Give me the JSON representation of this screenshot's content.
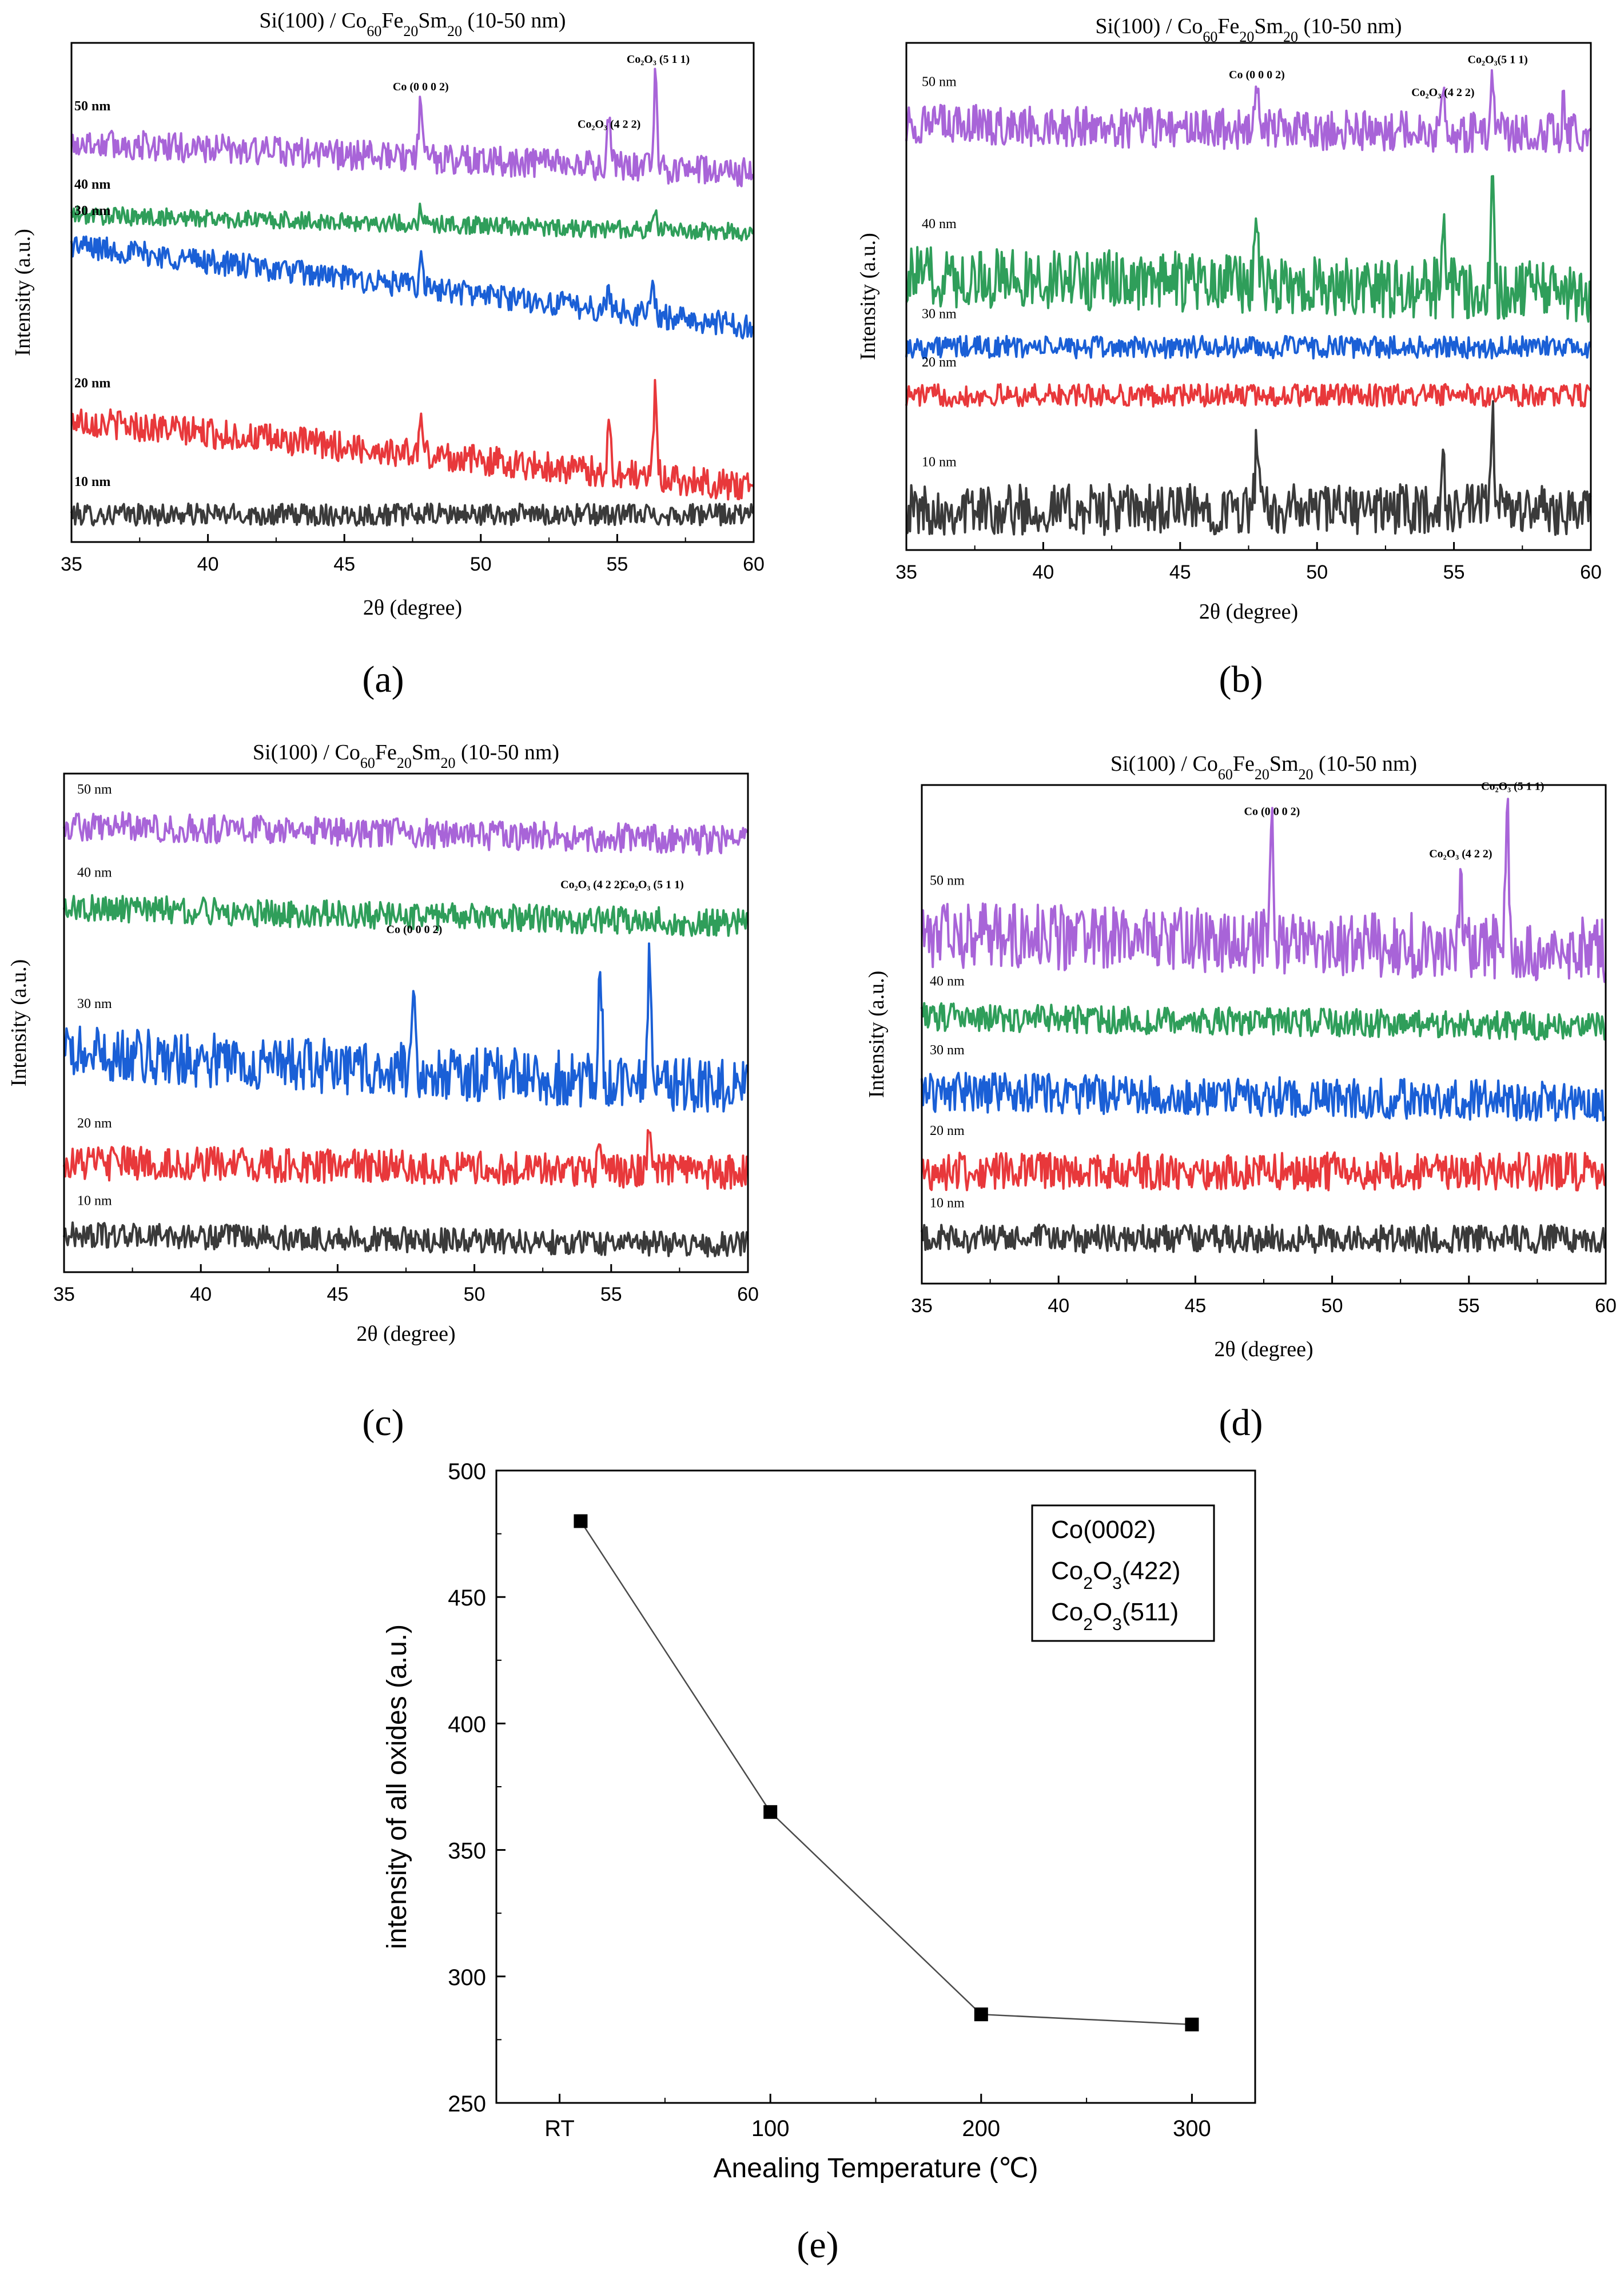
{
  "figure": {
    "panel_labels": [
      "(a)",
      "(b)",
      "(c)",
      "(d)",
      "(e)"
    ]
  },
  "colors": {
    "10 nm": "#3a3a3a",
    "20 nm": "#e8383b",
    "30 nm": "#1a5fd6",
    "40 nm": "#2f9e5a",
    "50 nm": "#a864d8",
    "axis": "#000000"
  },
  "chart_data": [
    {
      "type": "line",
      "panel": "(a)",
      "title": {
        "pre": "Si(100) / Co",
        "s1": "60",
        "mid1": "Fe",
        "s2": "20",
        "mid2": "Sm",
        "s3": "20",
        "post": " (10-50 nm)"
      },
      "xlabel": "2θ (degree)",
      "ylabel": "Intensity (a.u.)",
      "xlim": [
        35,
        60
      ],
      "xticks": [
        35,
        40,
        45,
        50,
        55,
        60
      ],
      "ylim": [
        0,
        10
      ],
      "label_style": "bold",
      "series": [
        {
          "name": "10 nm",
          "base": 0.55,
          "slope": 0.0,
          "noise": 0.22,
          "peaks": []
        },
        {
          "name": "20 nm",
          "base": 2.45,
          "slope": -1.35,
          "noise": 0.3,
          "peaks": [
            [
              47.8,
              0.7
            ],
            [
              54.7,
              0.85
            ],
            [
              56.4,
              1.85
            ]
          ]
        },
        {
          "name": "30 nm",
          "base": 5.95,
          "slope": -1.65,
          "noise": 0.25,
          "peaks": [
            [
              47.8,
              0.5
            ],
            [
              54.7,
              0.4
            ],
            [
              56.3,
              0.75
            ]
          ]
        },
        {
          "name": "40 nm",
          "base": 6.55,
          "slope": -0.35,
          "noise": 0.18,
          "peaks": [
            [
              47.8,
              0.35
            ],
            [
              56.4,
              0.3
            ]
          ]
        },
        {
          "name": "50 nm",
          "base": 8.0,
          "slope": -0.6,
          "noise": 0.3,
          "peaks": [
            [
              47.8,
              1.1
            ],
            [
              54.7,
              1.0
            ],
            [
              56.4,
              1.75
            ]
          ]
        }
      ],
      "annotations": [
        {
          "x": 47.8,
          "y": 9.05,
          "text": "Co (0 0 0 2)"
        },
        {
          "x": 54.7,
          "y": 8.3,
          "text": "Co₂O₃ (4 2 2)"
        },
        {
          "x": 56.5,
          "y": 9.6,
          "text": "Co₂O₃ (5 1 1)"
        }
      ]
    },
    {
      "type": "line",
      "panel": "(b)",
      "title": {
        "pre": "Si(100) / Co",
        "s1": "60",
        "mid1": "Fe",
        "s2": "20",
        "mid2": "Sm",
        "s3": "20",
        "post": " (10-50 nm)"
      },
      "xlabel": "2θ (degree)",
      "ylabel": "Intensity (a.u.)",
      "xlim": [
        35,
        60
      ],
      "xticks": [
        35,
        40,
        45,
        50,
        55,
        60
      ],
      "ylim": [
        0,
        10
      ],
      "label_style": "normal",
      "series": [
        {
          "name": "10 nm",
          "base": 0.8,
          "slope": 0.0,
          "noise": 0.5,
          "peaks": [
            [
              47.8,
              1.3
            ],
            [
              54.6,
              0.8
            ],
            [
              56.4,
              1.9
            ]
          ]
        },
        {
          "name": "20 nm",
          "base": 3.05,
          "slope": 0.0,
          "noise": 0.22,
          "peaks": []
        },
        {
          "name": "30 nm",
          "base": 4.0,
          "slope": 0.0,
          "noise": 0.22,
          "peaks": []
        },
        {
          "name": "40 nm",
          "base": 5.4,
          "slope": -0.3,
          "noise": 0.6,
          "peaks": [
            [
              47.8,
              1.6
            ],
            [
              54.6,
              1.1
            ],
            [
              56.4,
              2.4
            ]
          ]
        },
        {
          "name": "50 nm",
          "base": 8.4,
          "slope": -0.2,
          "noise": 0.4,
          "peaks": [
            [
              47.8,
              0.9
            ],
            [
              54.6,
              0.6
            ],
            [
              56.4,
              1.0
            ],
            [
              59.0,
              0.5
            ]
          ]
        }
      ],
      "annotations": [
        {
          "x": 47.8,
          "y": 9.3,
          "text": "Co (0 0 0 2)"
        },
        {
          "x": 54.6,
          "y": 8.95,
          "text": "Co₂O₃ (4 2 2)"
        },
        {
          "x": 56.6,
          "y": 9.6,
          "text": "Co₂O₃(5 1 1)"
        }
      ]
    },
    {
      "type": "line",
      "panel": "(c)",
      "title": {
        "pre": "Si(100) / Co",
        "s1": "60",
        "mid1": "Fe",
        "s2": "20",
        "mid2": "Sm",
        "s3": "20",
        "post": " (10-50 nm)"
      },
      "xlabel": "2θ (degree)",
      "ylabel": "Intensity (a.u.)",
      "xlim": [
        35,
        60
      ],
      "xticks": [
        35,
        40,
        45,
        50,
        55,
        60
      ],
      "ylim": [
        0,
        10
      ],
      "label_style": "normal",
      "series": [
        {
          "name": "10 nm",
          "base": 0.75,
          "slope": -0.2,
          "noise": 0.25,
          "peaks": []
        },
        {
          "name": "20 nm",
          "base": 2.2,
          "slope": -0.2,
          "noise": 0.35,
          "peaks": [
            [
              54.6,
              0.8
            ],
            [
              56.4,
              0.85
            ]
          ]
        },
        {
          "name": "30 nm",
          "base": 4.4,
          "slope": -0.7,
          "noise": 0.55,
          "peaks": [
            [
              47.8,
              1.35
            ],
            [
              54.6,
              2.4
            ],
            [
              56.4,
              2.5
            ]
          ]
        },
        {
          "name": "40 nm",
          "base": 7.3,
          "slope": -0.3,
          "noise": 0.28,
          "peaks": []
        },
        {
          "name": "50 nm",
          "base": 8.95,
          "slope": -0.3,
          "noise": 0.3,
          "peaks": []
        }
      ],
      "annotations": [
        {
          "x": 47.8,
          "y": 6.8,
          "text": "Co (0 0 0 2)"
        },
        {
          "x": 54.3,
          "y": 7.7,
          "text": "Co₂O₃ (4 2 2)"
        },
        {
          "x": 56.5,
          "y": 7.7,
          "text": "Co₂O₃ (5 1 1)"
        }
      ]
    },
    {
      "type": "line",
      "panel": "(d)",
      "title": {
        "pre": "Si(100) / Co",
        "s1": "60",
        "mid1": "Fe",
        "s2": "20",
        "mid2": "Sm",
        "s3": "20",
        "post": " (10-50 nm)"
      },
      "xlabel": "2θ (degree)",
      "ylabel": "Intensity (a.u.)",
      "xlim": [
        35,
        60
      ],
      "xticks": [
        35,
        40,
        45,
        50,
        55,
        60
      ],
      "ylim": [
        0,
        10
      ],
      "label_style": "normal",
      "series": [
        {
          "name": "10 nm",
          "base": 0.9,
          "slope": 0.0,
          "noise": 0.28,
          "peaks": []
        },
        {
          "name": "20 nm",
          "base": 2.25,
          "slope": 0.0,
          "noise": 0.38,
          "peaks": []
        },
        {
          "name": "30 nm",
          "base": 3.85,
          "slope": -0.2,
          "noise": 0.4,
          "peaks": []
        },
        {
          "name": "40 nm",
          "base": 5.35,
          "slope": -0.2,
          "noise": 0.28,
          "peaks": []
        },
        {
          "name": "50 nm",
          "base": 7.0,
          "slope": -0.3,
          "noise": 0.65,
          "peaks": [
            [
              47.8,
              2.1
            ],
            [
              54.7,
              1.3
            ],
            [
              56.4,
              2.8
            ]
          ]
        }
      ],
      "annotations": [
        {
          "x": 47.8,
          "y": 9.4,
          "text": "Co (0 0 0 2)"
        },
        {
          "x": 54.7,
          "y": 8.55,
          "text": "Co₂O₃ (4 2 2)"
        },
        {
          "x": 56.6,
          "y": 9.9,
          "text": "Co₂O₃ (5 1 1)"
        }
      ]
    },
    {
      "type": "line",
      "panel": "(e)",
      "title": "",
      "xlabel": "Anealing Temperature (℃)",
      "ylabel": "intensity of all oxides (a.u.)",
      "categories": [
        "RT",
        "100",
        "200",
        "300"
      ],
      "x_positions": [
        0,
        100,
        200,
        300
      ],
      "xlim": [
        -30,
        330
      ],
      "ylim": [
        250,
        500
      ],
      "yticks": [
        250,
        300,
        350,
        400,
        450,
        500
      ],
      "series": [
        {
          "name": "intensity of all oxides",
          "x": [
            10,
            100,
            200,
            300
          ],
          "values": [
            480,
            365,
            285,
            281
          ]
        }
      ],
      "legend": {
        "position": "top-right",
        "entries": [
          {
            "pre": "Co(0002)"
          },
          {
            "pre": "Co",
            "sub": "2",
            "mid": "O",
            "sub2": "3",
            "post": "(422)"
          },
          {
            "pre": "Co",
            "sub": "2",
            "mid": "O",
            "sub2": "3",
            "post": "(511)"
          }
        ]
      }
    }
  ]
}
